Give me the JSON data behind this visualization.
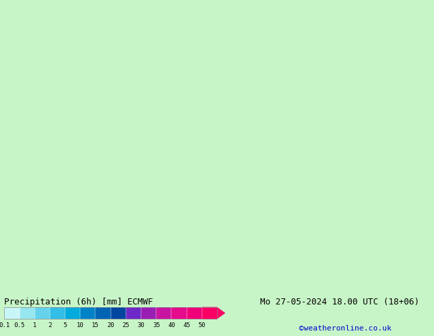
{
  "title_left": "Precipitation (6h) [mm] ECMWF",
  "title_right": "Mo 27-05-2024 18.00 UTC (18+06)",
  "credit": "©weatheronline.co.uk",
  "colorbar_values": [
    "0.1",
    "0.5",
    "1",
    "2",
    "5",
    "10",
    "15",
    "20",
    "25",
    "30",
    "35",
    "40",
    "45",
    "50"
  ],
  "colorbar_colors": [
    "#c8f5f5",
    "#96e6f0",
    "#64d2eb",
    "#32bee6",
    "#00aadc",
    "#0082c8",
    "#0064b4",
    "#0046a0",
    "#6e28c8",
    "#9b1eb4",
    "#c814a0",
    "#e60a8c",
    "#f00078",
    "#fa0064"
  ],
  "bg_color": "#c8f5c8",
  "bottom_bg": "#ffffff",
  "label_color": "#000000",
  "title_fontsize": 9,
  "credit_color": "#0000cc",
  "credit_fontsize": 8
}
